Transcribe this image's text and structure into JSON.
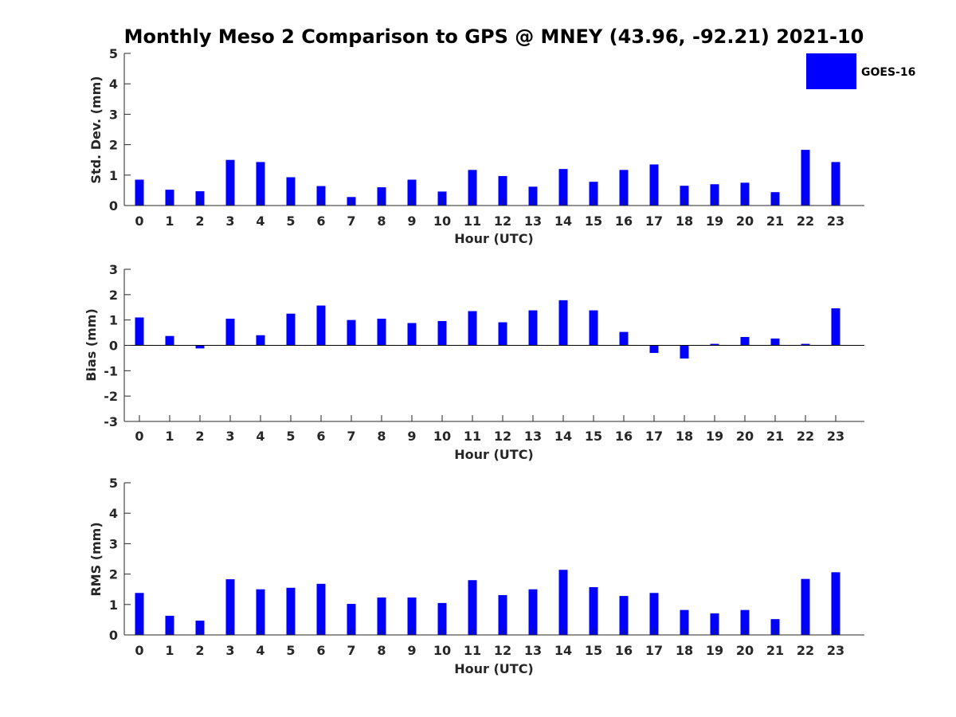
{
  "title": "Monthly Meso 2 Comparison to GPS @ MNEY (43.96, -92.21) 2021-10",
  "legend": {
    "label": "GOES-16",
    "color": "#0000ff",
    "placement": "top-right"
  },
  "colors": {
    "bar": "#0000ff",
    "axis": "#262626"
  },
  "chart_data": [
    {
      "type": "bar",
      "name": "std-dev",
      "xlabel": "Hour (UTC)",
      "ylabel": "Std. Dev. (mm)",
      "ylim": [
        0,
        5
      ],
      "yticks": [
        0,
        1,
        2,
        3,
        4,
        5
      ],
      "categories": [
        "0",
        "1",
        "2",
        "3",
        "4",
        "5",
        "6",
        "7",
        "8",
        "9",
        "10",
        "11",
        "12",
        "13",
        "14",
        "15",
        "16",
        "17",
        "18",
        "19",
        "20",
        "21",
        "22",
        "23"
      ],
      "series": [
        {
          "name": "GOES-16",
          "values": [
            0.85,
            0.52,
            0.47,
            1.5,
            1.43,
            0.93,
            0.64,
            0.28,
            0.6,
            0.85,
            0.46,
            1.17,
            0.97,
            0.62,
            1.2,
            0.78,
            1.17,
            1.35,
            0.65,
            0.7,
            0.75,
            0.44,
            1.83,
            1.43
          ]
        }
      ]
    },
    {
      "type": "bar",
      "name": "bias",
      "xlabel": "Hour (UTC)",
      "ylabel": "Bias (mm)",
      "ylim": [
        -3,
        3
      ],
      "yticks": [
        -3,
        -2,
        -1,
        0,
        1,
        2,
        3
      ],
      "categories": [
        "0",
        "1",
        "2",
        "3",
        "4",
        "5",
        "6",
        "7",
        "8",
        "9",
        "10",
        "11",
        "12",
        "13",
        "14",
        "15",
        "16",
        "17",
        "18",
        "19",
        "20",
        "21",
        "22",
        "23"
      ],
      "series": [
        {
          "name": "GOES-16",
          "values": [
            1.1,
            0.37,
            -0.12,
            1.05,
            0.4,
            1.25,
            1.57,
            1.0,
            1.05,
            0.88,
            0.96,
            1.35,
            0.91,
            1.38,
            1.78,
            1.38,
            0.53,
            -0.3,
            -0.52,
            0.06,
            0.33,
            0.27,
            0.06,
            1.46
          ]
        }
      ]
    },
    {
      "type": "bar",
      "name": "rms",
      "xlabel": "Hour (UTC)",
      "ylabel": "RMS (mm)",
      "ylim": [
        0,
        5
      ],
      "yticks": [
        0,
        1,
        2,
        3,
        4,
        5
      ],
      "categories": [
        "0",
        "1",
        "2",
        "3",
        "4",
        "5",
        "6",
        "7",
        "8",
        "9",
        "10",
        "11",
        "12",
        "13",
        "14",
        "15",
        "16",
        "17",
        "18",
        "19",
        "20",
        "21",
        "22",
        "23"
      ],
      "series": [
        {
          "name": "GOES-16",
          "values": [
            1.38,
            0.63,
            0.47,
            1.83,
            1.5,
            1.55,
            1.68,
            1.02,
            1.23,
            1.23,
            1.05,
            1.8,
            1.31,
            1.5,
            2.14,
            1.57,
            1.28,
            1.38,
            0.82,
            0.71,
            0.82,
            0.52,
            1.84,
            2.06
          ]
        }
      ]
    }
  ]
}
